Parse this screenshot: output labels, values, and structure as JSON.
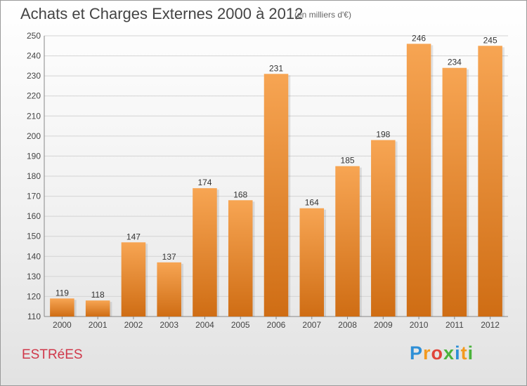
{
  "header": {
    "title": "Achats et Charges Externes 2000 à 2012",
    "subtitle": "(en milliers d'€)"
  },
  "footer": {
    "place": "ESTRéES",
    "logo": "Proxiti"
  },
  "colors": {
    "bar_top": "#f7a553",
    "bar_bottom": "#cf6d14",
    "grid": "#d4d4d4",
    "place": "#d0384a"
  },
  "chart_data": {
    "type": "bar",
    "title": "Achats et Charges Externes 2000 à 2012",
    "subtitle": "(en milliers d'€)",
    "categories": [
      "2000",
      "2001",
      "2002",
      "2003",
      "2004",
      "2005",
      "2006",
      "2007",
      "2008",
      "2009",
      "2010",
      "2011",
      "2012"
    ],
    "values": [
      119,
      118,
      147,
      137,
      174,
      168,
      231,
      164,
      185,
      198,
      246,
      234,
      245
    ],
    "ylim": [
      110,
      250
    ],
    "yticks": [
      110,
      120,
      130,
      140,
      150,
      160,
      170,
      180,
      190,
      200,
      210,
      220,
      230,
      240,
      250
    ],
    "grid": true,
    "data_labels": true
  }
}
